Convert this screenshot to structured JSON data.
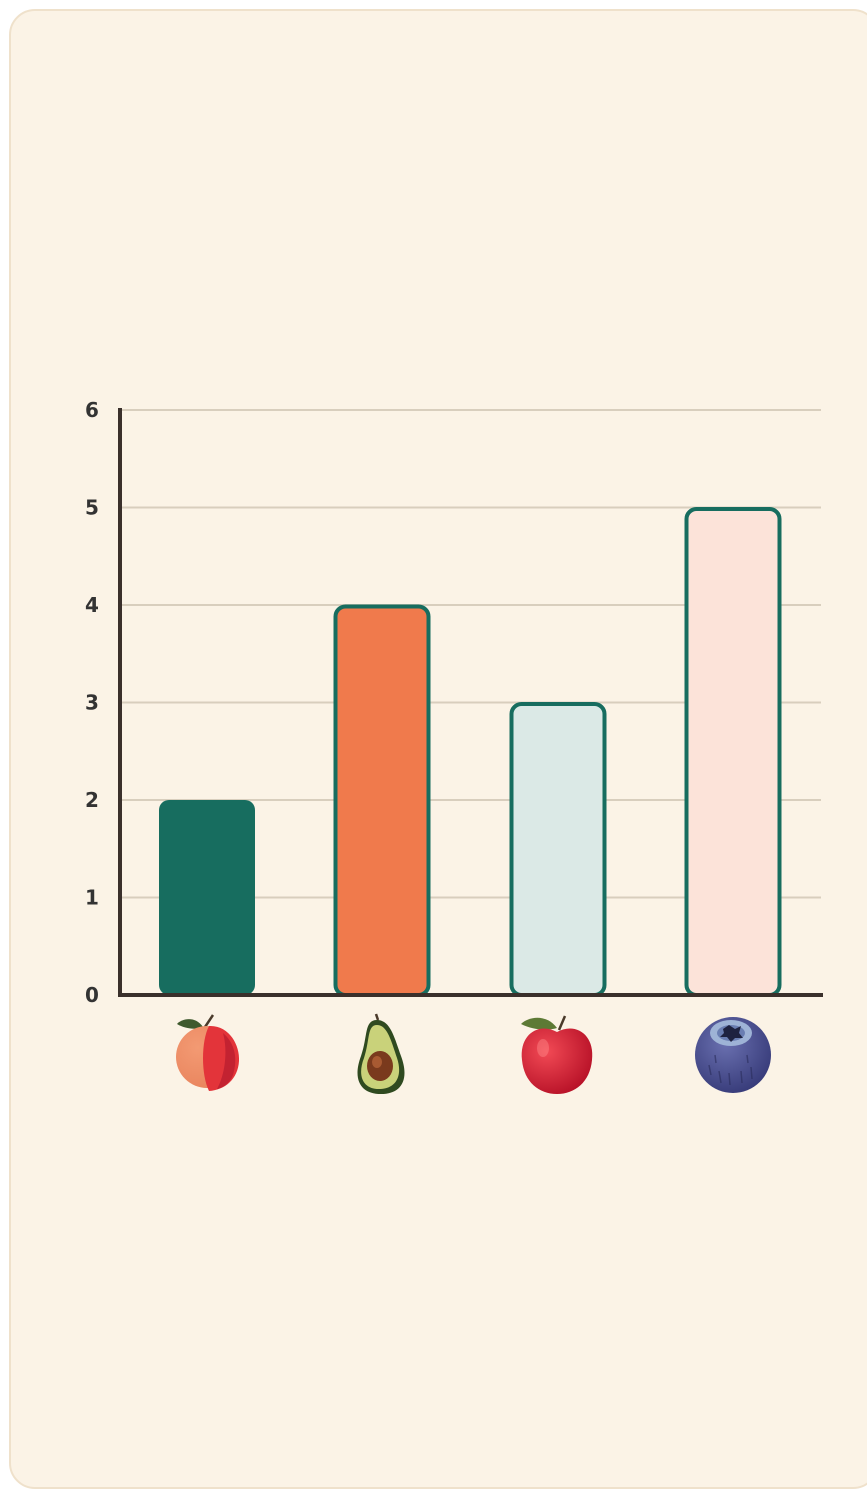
{
  "chart_data": {
    "type": "bar",
    "title": "",
    "xlabel": "",
    "ylabel": "",
    "categories": [
      "peach",
      "avocado",
      "apple",
      "blueberry"
    ],
    "values": [
      2,
      4,
      3,
      5
    ],
    "ylim": [
      0,
      6
    ],
    "yticks": [
      "0",
      "1",
      "2",
      "3",
      "4",
      "5",
      "6"
    ],
    "grid": true,
    "legend": "none",
    "category_icons": [
      "peach-icon",
      "avocado-icon",
      "apple-icon",
      "blueberry-icon"
    ],
    "colors": {
      "background": "#fbf3e6",
      "card_border": "#efe1cb",
      "grid": "#d8cebd",
      "axis": "#3a302b",
      "bar_fills": [
        "#176d5f",
        "#f07a4c",
        "#dbe9e6",
        "#fce3d9"
      ],
      "bar_outline": "#176d5f"
    }
  }
}
